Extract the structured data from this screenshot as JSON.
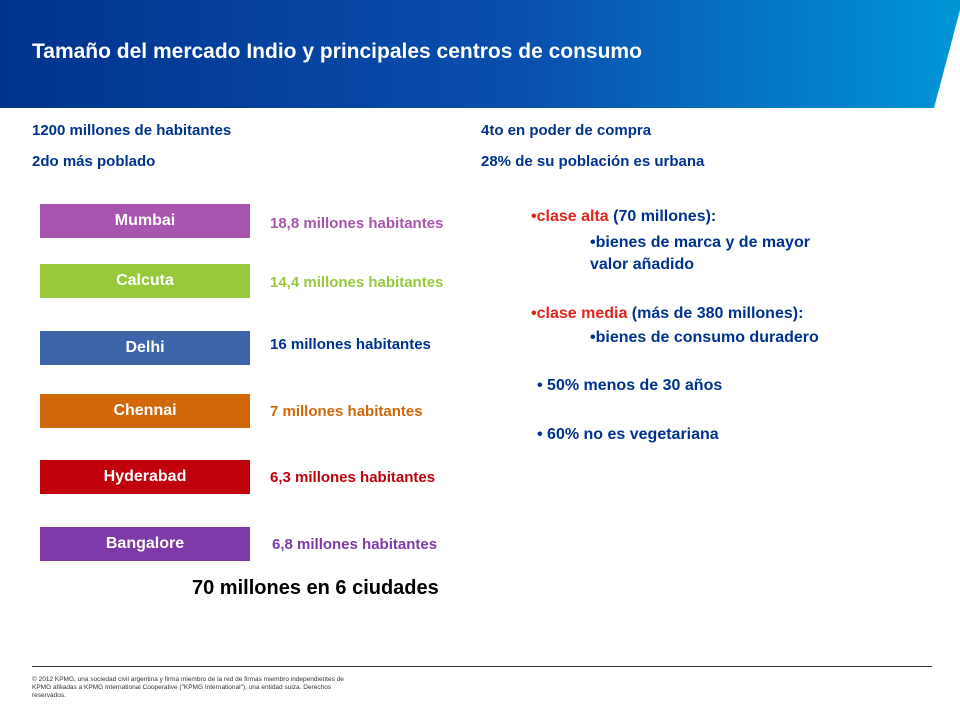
{
  "title": "Tamaño del mercado Indio y principales centros de consumo",
  "facts": {
    "habitantes": "1200 millones de habitantes",
    "poblado": "2do más poblado",
    "compra": "4to en poder de compra",
    "urbana": "28% de su población es urbana"
  },
  "cities": [
    {
      "name": "Mumbai",
      "population": "18,8 millones habitantes",
      "color": "#A855B0"
    },
    {
      "name": "Calcuta",
      "population": "14,4 millones habitantes",
      "color": "#98C93C"
    },
    {
      "name": "Delhi",
      "population": "16  millones habitantes",
      "color": "#3E64AA",
      "label_color": "#00338D"
    },
    {
      "name": "Chennai",
      "population": "7 millones habitantes",
      "color": "#D0680A"
    },
    {
      "name": "Hyderabad",
      "population": "6,3 millones habitantes",
      "color": "#C0000B"
    },
    {
      "name": "Bangalore",
      "population": "6,8 millones habitantes",
      "color": "#7E3AA8"
    }
  ],
  "summary": "70 millones en 6 ciudades",
  "bullets": {
    "alta_bullet": "•",
    "alta_label": "clase alta",
    "alta_rest": " (70 millones):",
    "alta_sub_bullet": "•",
    "alta_sub_line1": "bienes de marca y de mayor",
    "alta_sub_line2": "valor añadido",
    "media_bullet": "•",
    "media_label": "clase media",
    "media_rest": " (más de 380 millones):",
    "media_sub_bullet": "•",
    "media_sub": "bienes de consumo duradero",
    "b3": "• 50% menos de 30 años",
    "b4": "• 60% no es vegetariana"
  },
  "footer": "© 2012 KPMG, una sociedad civil argentina y firma miembro de la red de firmas miembro independientes de KPMG afiliadas a KPMG International Cooperative (\"KPMG International\"), una entidad suiza. Derechos reservados.",
  "colors": {
    "kpmg_blue": "#00338D",
    "header_light": "#0091DA",
    "accent_red": "#E2241B"
  }
}
